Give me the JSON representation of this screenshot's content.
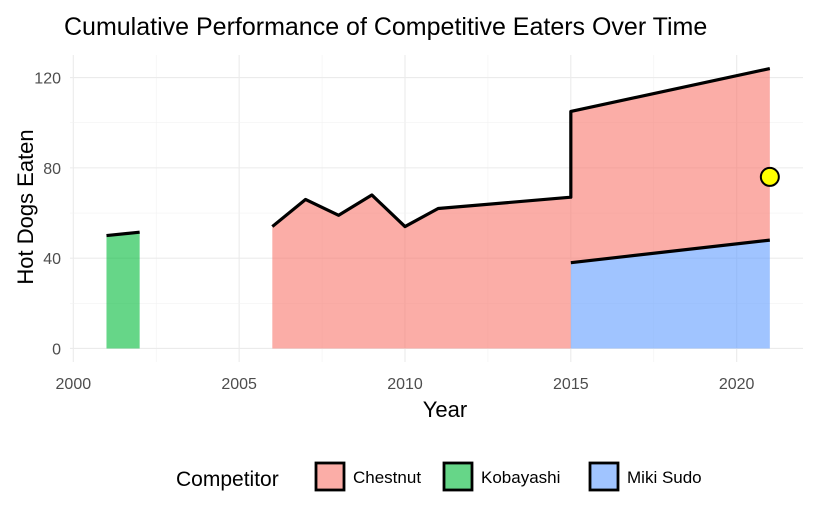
{
  "chart_data": {
    "type": "area",
    "title": "Cumulative Performance of Competitive Eaters Over Time",
    "xlabel": "Year",
    "ylabel": "Hot Dogs Eaten",
    "xlim": [
      1999.9,
      2022.0
    ],
    "ylim": [
      -6,
      130
    ],
    "x_ticks": [
      2000,
      2005,
      2010,
      2015,
      2020
    ],
    "y_ticks": [
      0,
      40,
      80,
      120
    ],
    "grid": true,
    "legend": {
      "title": "Competitor",
      "position": "bottom"
    },
    "series": [
      {
        "name": "Chestnut",
        "color": "#F8766D",
        "segments": [
          [
            {
              "x": 2006,
              "y0": 0,
              "y1": 54
            },
            {
              "x": 2007,
              "y0": 0,
              "y1": 66
            },
            {
              "x": 2008,
              "y0": 0,
              "y1": 59
            },
            {
              "x": 2009,
              "y0": 0,
              "y1": 68
            },
            {
              "x": 2010,
              "y0": 0,
              "y1": 54
            },
            {
              "x": 2011,
              "y0": 0,
              "y1": 62
            },
            {
              "x": 2015,
              "y0": 0,
              "y1": 67
            },
            {
              "x": 2015,
              "y0": 38,
              "y1": 105
            },
            {
              "x": 2021,
              "y0": 48,
              "y1": 124
            }
          ]
        ]
      },
      {
        "name": "Kobayashi",
        "color": "#00BA38",
        "segments": [
          [
            {
              "x": 2001,
              "y0": 0,
              "y1": 50
            },
            {
              "x": 2002,
              "y0": 0,
              "y1": 51.5
            }
          ]
        ]
      },
      {
        "name": "Miki Sudo",
        "color": "#619CFF",
        "segments": [
          [
            {
              "x": 2015,
              "y0": 0,
              "y1": 38
            },
            {
              "x": 2021,
              "y0": 0,
              "y1": 48
            }
          ]
        ]
      }
    ],
    "highlight_point": {
      "x": 2021,
      "y": 76,
      "color": "#FFFF00"
    }
  }
}
